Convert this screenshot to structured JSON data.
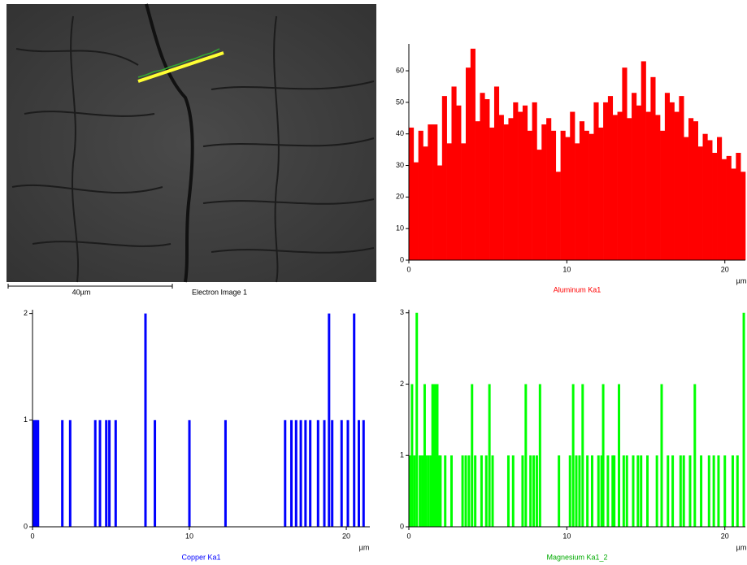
{
  "image": {
    "scale_label": "40µm",
    "caption": "Electron Image 1"
  },
  "chart_data": [
    {
      "type": "histogram",
      "title": "Aluminum Ka1",
      "x_label": "µm",
      "color": "#ff0000",
      "bins": [
        0,
        0.3,
        0.6,
        0.9,
        1.2,
        1.5,
        1.8,
        2.1,
        2.4,
        2.7,
        3,
        3.3,
        3.6,
        3.9,
        4.2,
        4.5,
        4.8,
        5.1,
        5.4,
        5.7,
        6,
        6.3,
        6.6,
        6.9,
        7.2,
        7.5,
        7.8,
        8.1,
        8.4,
        8.7,
        9,
        9.3,
        9.6,
        9.9,
        10.2,
        10.5,
        10.8,
        11.1,
        11.4,
        11.7,
        12,
        12.3,
        12.6,
        12.9,
        13.2,
        13.5,
        13.8,
        14.1,
        14.4,
        14.7,
        15,
        15.3,
        15.6,
        15.9,
        16.2,
        16.5,
        16.8,
        17.1,
        17.4,
        17.7,
        18,
        18.3,
        18.6,
        18.9,
        19.2,
        19.5,
        19.8,
        20.1,
        20.4,
        20.7,
        21,
        21.3
      ],
      "values": [
        42,
        31,
        41,
        36,
        43,
        43,
        30,
        52,
        37,
        55,
        49,
        37,
        61,
        67,
        44,
        53,
        51,
        42,
        55,
        46,
        43,
        45,
        50,
        47,
        49,
        41,
        50,
        35,
        43,
        45,
        41,
        28,
        41,
        39,
        47,
        37,
        44,
        41,
        40,
        50,
        42,
        50,
        52,
        46,
        47,
        61,
        45,
        53,
        49,
        63,
        47,
        58,
        46,
        41,
        53,
        50,
        47,
        52,
        39,
        45,
        44,
        36,
        40,
        38,
        34,
        39,
        32,
        33,
        29,
        34,
        28
      ],
      "xlim": [
        0,
        21.3
      ],
      "ylim": [
        0,
        68
      ],
      "xticks": [
        0,
        10,
        20
      ],
      "yticks": [
        0,
        10,
        20,
        30,
        40,
        50,
        60
      ]
    },
    {
      "type": "spike",
      "title": "Copper Ka1",
      "x_label": "µm",
      "color": "#0000ff",
      "x": [
        0.05,
        0.15,
        0.25,
        0.35,
        1.9,
        2.4,
        4.0,
        4.3,
        4.7,
        4.9,
        5.3,
        7.2,
        7.8,
        10.0,
        12.3,
        16.1,
        16.5,
        16.8,
        17.1,
        17.4,
        17.7,
        18.2,
        18.6,
        18.9,
        19.1,
        19.7,
        20.1,
        20.5,
        20.8,
        21.1
      ],
      "values": [
        1,
        1,
        1,
        1,
        1,
        1,
        1,
        1,
        1,
        1,
        1,
        2,
        1,
        1,
        1,
        1,
        1,
        1,
        1,
        1,
        1,
        1,
        1,
        2,
        1,
        1,
        1,
        2,
        1,
        1
      ],
      "xlim": [
        0,
        21.5
      ],
      "ylim": [
        0,
        2.02
      ],
      "xticks": [
        0,
        10,
        20
      ],
      "yticks": [
        0,
        1,
        2
      ]
    },
    {
      "type": "spike",
      "title": "Magnesium Ka1_2",
      "x_label": "µm",
      "color": "#00ff00",
      "x": [
        0.05,
        0.2,
        0.35,
        0.5,
        0.7,
        0.85,
        1.0,
        1.1,
        1.25,
        1.4,
        1.5,
        1.6,
        1.7,
        1.8,
        1.9,
        2.0,
        2.3,
        2.7,
        3.4,
        3.6,
        3.8,
        4.0,
        4.2,
        4.6,
        4.9,
        5.1,
        5.3,
        6.3,
        6.6,
        7.2,
        7.4,
        7.7,
        7.9,
        8.1,
        8.3,
        9.5,
        10.2,
        10.4,
        10.6,
        10.8,
        11.0,
        11.3,
        11.6,
        12.0,
        12.2,
        12.3,
        12.6,
        12.9,
        13.0,
        13.3,
        13.6,
        13.8,
        14.2,
        14.5,
        14.7,
        15.1,
        15.7,
        16.0,
        16.4,
        16.7,
        17.2,
        17.4,
        17.8,
        18.1,
        18.5,
        19.0,
        19.3,
        19.6,
        20.0,
        20.5,
        20.8,
        21.2
      ],
      "values": [
        1,
        2,
        1,
        3,
        1,
        1,
        2,
        1,
        1,
        1,
        2,
        2,
        2,
        2,
        1,
        1,
        1,
        1,
        1,
        1,
        1,
        2,
        1,
        1,
        1,
        2,
        1,
        1,
        1,
        1,
        2,
        1,
        1,
        1,
        2,
        1,
        1,
        2,
        1,
        1,
        2,
        1,
        1,
        1,
        1,
        2,
        1,
        1,
        1,
        2,
        1,
        1,
        1,
        1,
        1,
        1,
        1,
        2,
        1,
        1,
        1,
        1,
        1,
        2,
        1,
        1,
        1,
        1,
        1,
        1,
        1,
        3
      ],
      "xlim": [
        0,
        21.3
      ],
      "ylim": [
        0,
        3.02
      ],
      "xticks": [
        0,
        10,
        20
      ],
      "yticks": [
        0,
        1,
        2,
        3
      ]
    }
  ]
}
